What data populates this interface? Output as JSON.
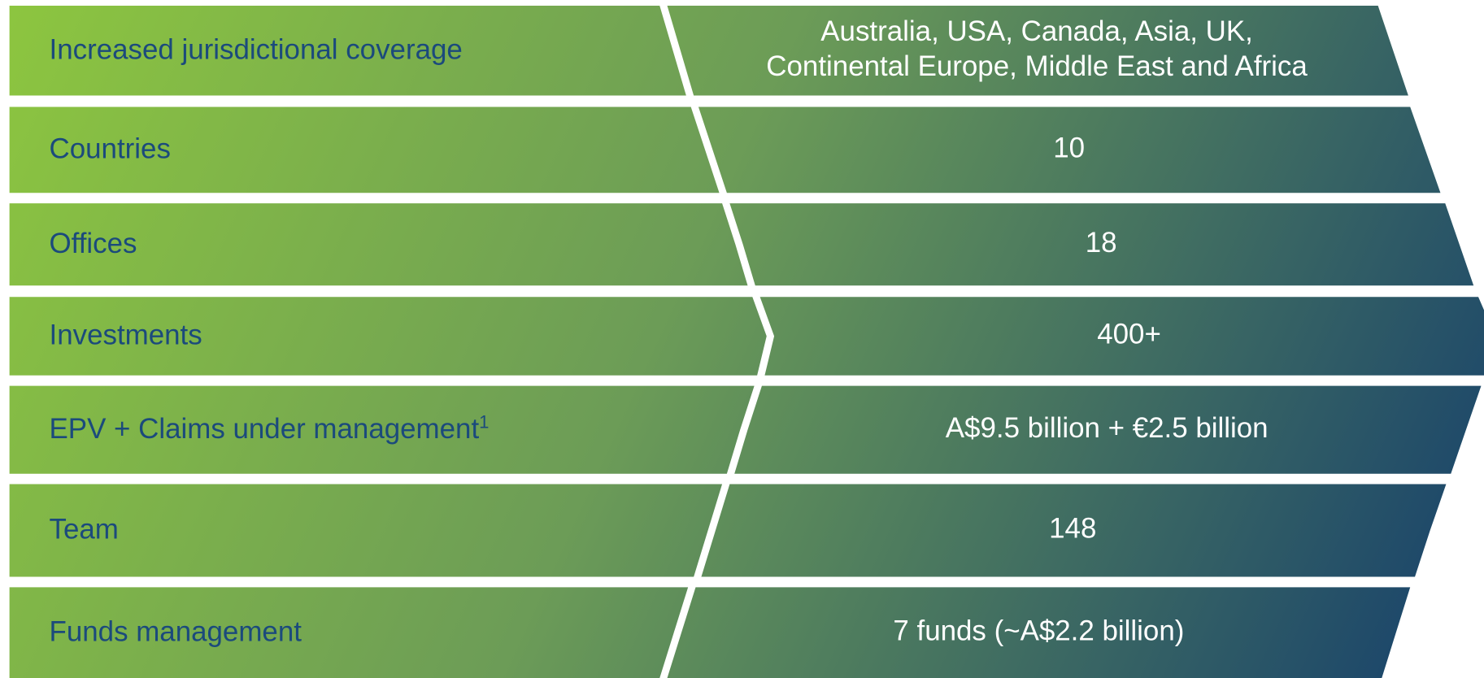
{
  "rows": [
    {
      "label": "Increased jurisdictional coverage",
      "value": [
        "Australia, USA, Canada, Asia, UK,",
        "Continental Europe, Middle East and Africa"
      ]
    },
    {
      "label": "Countries",
      "value": [
        "10"
      ]
    },
    {
      "label": "Offices",
      "value": [
        "18"
      ]
    },
    {
      "label": "Investments",
      "value": [
        "400+"
      ]
    },
    {
      "label": "EPV + Claims under management",
      "footnote": "1",
      "value": [
        "A$9.5 billion + €2.5 billion"
      ]
    },
    {
      "label": "Team",
      "value": [
        "148"
      ]
    },
    {
      "label": "Funds management",
      "value": [
        "7 funds (~A$2.2 billion)"
      ]
    }
  ]
}
